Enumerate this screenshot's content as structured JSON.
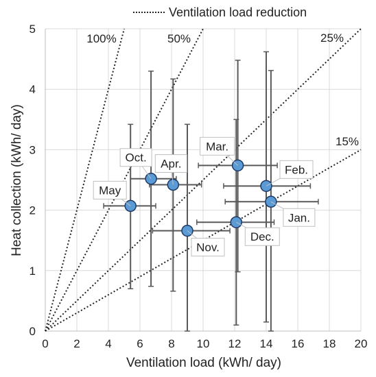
{
  "chart_data": {
    "type": "scatter",
    "xlabel": "Ventilation load (kWh/ day)",
    "ylabel": "Heat collection (kWh/ day)",
    "xlim": [
      0,
      20
    ],
    "ylim": [
      0,
      5
    ],
    "xticks": [
      "0",
      "2",
      "4",
      "6",
      "8",
      "10",
      "12",
      "14",
      "16",
      "18",
      "20"
    ],
    "yticks": [
      "0",
      "1",
      "2",
      "3",
      "4",
      "5"
    ],
    "grid": true,
    "legend": {
      "position": "top-right",
      "entries": [
        "Ventilation load reduction"
      ]
    },
    "reference_lines": [
      {
        "label": "100%",
        "slope": 1.0
      },
      {
        "label": "50%",
        "slope": 0.5
      },
      {
        "label": "25%",
        "slope": 0.25
      },
      {
        "label": "15%",
        "slope": 0.15
      }
    ],
    "points": [
      {
        "label": "May",
        "x": 5.4,
        "y": 2.07,
        "xerr": [
          3.7,
          7.0
        ],
        "yerr": [
          0.7,
          3.42
        ]
      },
      {
        "label": "Oct.",
        "x": 6.7,
        "y": 2.52,
        "xerr": [
          5.4,
          8.3
        ],
        "yerr": [
          0.74,
          4.3
        ]
      },
      {
        "label": "Apr.",
        "x": 8.1,
        "y": 2.42,
        "xerr": [
          6.6,
          9.9
        ],
        "yerr": [
          0.66,
          4.17
        ]
      },
      {
        "label": "Nov.",
        "x": 9.0,
        "y": 1.66,
        "xerr": [
          6.8,
          11.7
        ],
        "yerr": [
          0.0,
          3.42
        ]
      },
      {
        "label": "Mar.",
        "x": 12.2,
        "y": 2.74,
        "xerr": [
          9.7,
          14.7
        ],
        "yerr": [
          0.98,
          4.48
        ]
      },
      {
        "label": "Dec.",
        "x": 12.1,
        "y": 1.8,
        "xerr": [
          9.6,
          14.5
        ],
        "yerr": [
          0.1,
          3.5
        ]
      },
      {
        "label": "Feb.",
        "x": 14.0,
        "y": 2.4,
        "xerr": [
          11.3,
          16.8
        ],
        "yerr": [
          0.15,
          4.62
        ]
      },
      {
        "label": "Jan.",
        "x": 14.3,
        "y": 2.14,
        "xerr": [
          11.4,
          17.3
        ],
        "yerr": [
          0.0,
          4.31
        ]
      }
    ]
  },
  "colors": {
    "marker_fill": "#5b9bd5",
    "marker_stroke": "#1f3864",
    "errorbar": "#595959",
    "grid": "#d9d9d9",
    "refline": "#222222"
  }
}
